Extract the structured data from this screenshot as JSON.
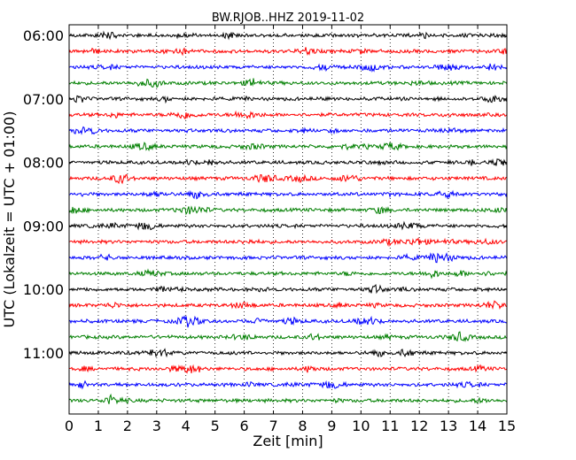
{
  "chart_data": {
    "type": "line",
    "title": "BW.RJOB..HHZ 2019-11-02",
    "xlabel": "Zeit  [min]",
    "ylabel": "UTC (Lokalzeit = UTC + 01:00)",
    "xlim": [
      0,
      15
    ],
    "x_ticks": [
      "0",
      "1",
      "2",
      "3",
      "4",
      "5",
      "6",
      "7",
      "8",
      "9",
      "10",
      "11",
      "12",
      "13",
      "14",
      "15"
    ],
    "y_ticks": [
      "06:00",
      "07:00",
      "08:00",
      "09:00",
      "10:00",
      "11:00"
    ],
    "grid": "vertical dotted",
    "trace_colors": [
      "#000000",
      "#ff0000",
      "#0000ff",
      "#007f00"
    ],
    "trace_start_times": [
      "06:00",
      "06:15",
      "06:30",
      "06:45",
      "07:00",
      "07:15",
      "07:30",
      "07:45",
      "08:00",
      "08:15",
      "08:30",
      "08:45",
      "09:00",
      "09:15",
      "09:30",
      "09:45",
      "10:00",
      "10:15",
      "10:30",
      "10:45",
      "11:00",
      "11:15",
      "11:30",
      "11:45"
    ]
  }
}
